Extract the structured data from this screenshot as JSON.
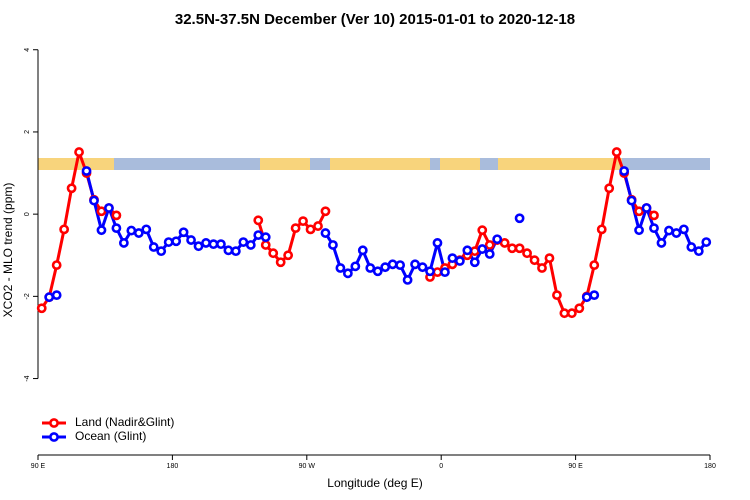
{
  "chart_data": {
    "type": "line",
    "title": "32.5N-37.5N December (Ver 10)   2015-01-01 to 2020-12-18",
    "xlabel": "Longitude (deg E)",
    "ylabel": "XCO2 - MLO trend (ppm)",
    "x": [
      92.5,
      97.5,
      102.5,
      107.5,
      112.5,
      117.5,
      122.5,
      127.5,
      132.5,
      137.5,
      142.5,
      147.5,
      152.5,
      157.5,
      162.5,
      167.5,
      172.5,
      177.5,
      182.5,
      187.5,
      192.5,
      197.5,
      202.5,
      207.5,
      212.5,
      217.5,
      222.5,
      227.5,
      232.5,
      237.5,
      242.5,
      247.5,
      252.5,
      257.5,
      262.5,
      267.5,
      272.5,
      277.5,
      282.5,
      287.5,
      292.5,
      297.5,
      302.5,
      307.5,
      312.5,
      317.5,
      322.5,
      327.5,
      332.5,
      337.5,
      342.5,
      347.5,
      352.5,
      357.5,
      362.5,
      367.5,
      372.5,
      377.5,
      382.5,
      387.5,
      392.5,
      397.5,
      402.5,
      407.5,
      412.5,
      417.5,
      422.5,
      427.5,
      432.5,
      437.5,
      442.5,
      447.5,
      452.5,
      457.5,
      462.5,
      467.5,
      472.5,
      477.5,
      482.5,
      487.5,
      492.5,
      497.5,
      502.5,
      507.5,
      512.5,
      517.5,
      522.5,
      527.5,
      532.5,
      537.5
    ],
    "series": [
      {
        "name": "Land (Nadir&Glint)",
        "color": "#ff0000",
        "values": [
          -2.29,
          -2.02,
          -1.24,
          -0.37,
          0.63,
          1.51,
          1.0,
          0.35,
          0.07,
          0.15,
          -0.03,
          null,
          null,
          null,
          null,
          null,
          null,
          null,
          null,
          null,
          null,
          null,
          null,
          null,
          null,
          null,
          null,
          null,
          null,
          -0.15,
          -0.75,
          -0.95,
          -1.17,
          -1.0,
          -0.34,
          -0.17,
          -0.37,
          -0.29,
          0.07,
          null,
          null,
          null,
          null,
          null,
          null,
          null,
          null,
          null,
          null,
          null,
          null,
          null,
          -1.53,
          -1.41,
          -1.31,
          -1.22,
          -1.12,
          -1.0,
          -0.9,
          -0.39,
          -0.75,
          -0.63,
          -0.7,
          -0.83,
          -0.83,
          -0.95,
          -1.12,
          -1.31,
          -1.07,
          -1.97,
          -2.41,
          -2.41,
          -2.29,
          -2.0,
          -1.24,
          -0.37,
          0.63,
          1.51,
          1.0,
          0.35,
          0.07,
          0.15,
          -0.03,
          null,
          null,
          null,
          null,
          null,
          null,
          null
        ]
      },
      {
        "name": "Ocean (Glint)",
        "color": "#0000ff",
        "values": [
          null,
          -2.02,
          -1.97,
          null,
          null,
          null,
          1.05,
          0.33,
          -0.39,
          0.15,
          -0.34,
          -0.7,
          -0.4,
          -0.46,
          -0.37,
          -0.8,
          -0.9,
          -0.68,
          -0.66,
          -0.44,
          -0.63,
          -0.78,
          -0.7,
          -0.73,
          -0.73,
          -0.88,
          -0.9,
          -0.68,
          -0.75,
          -0.51,
          -0.56,
          null,
          null,
          null,
          null,
          null,
          null,
          null,
          -0.46,
          -0.75,
          -1.31,
          -1.44,
          -1.27,
          -0.88,
          -1.31,
          -1.39,
          -1.29,
          -1.22,
          -1.24,
          -1.6,
          -1.22,
          -1.29,
          -1.39,
          -0.7,
          -1.41,
          -1.07,
          -1.14,
          -0.88,
          -1.17,
          -0.85,
          -0.97,
          -0.61,
          null,
          null,
          -0.1,
          null,
          null,
          null,
          null,
          null,
          null,
          null,
          null,
          -2.02,
          -1.97,
          null,
          null,
          null,
          1.05,
          0.33,
          -0.39,
          0.15,
          -0.34,
          -0.7,
          -0.4,
          -0.46,
          -0.37,
          -0.8,
          -0.9,
          -0.68
        ]
      }
    ],
    "xlim": [
      90,
      540
    ],
    "xticks": [
      {
        "value": 90,
        "label": "90 E"
      },
      180,
      {
        "value": 270,
        "label": "90 W"
      },
      {
        "value": 360,
        "label": "0"
      },
      {
        "value": 450,
        "label": "90 E"
      },
      {
        "value": 540,
        "label": "180"
      }
    ],
    "ylim": [
      -5.86,
      4.31
    ],
    "yticks": [
      -4,
      -2,
      0,
      2,
      4
    ],
    "grid": false,
    "legend": "bottom-left"
  }
}
